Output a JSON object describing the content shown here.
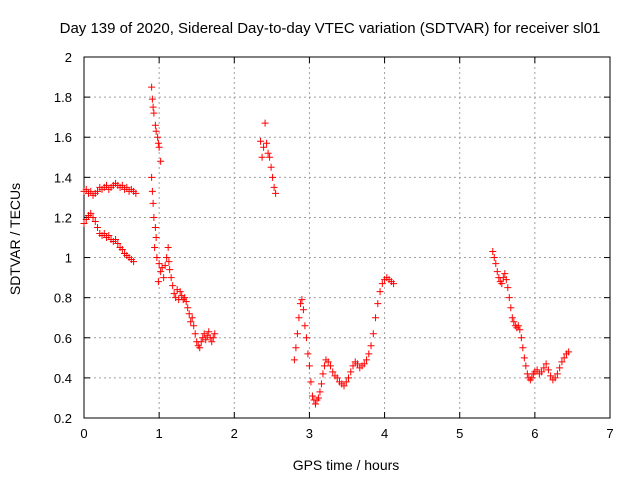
{
  "chart_data": {
    "type": "scatter",
    "title": "Day 139 of 2020, Sidereal Day-to-day VTEC variation (SDTVAR) for receiver sl01",
    "xlabel": "GPS time / hours",
    "ylabel": "SDTVAR / TECUs",
    "xlim": [
      0,
      7
    ],
    "ylim": [
      0.2,
      2
    ],
    "xticks": [
      "0",
      "1",
      "2",
      "3",
      "4",
      "5",
      "6",
      "7"
    ],
    "yticks": [
      "0.2",
      "0.4",
      "0.6",
      "0.8",
      "1",
      "1.2",
      "1.4",
      "1.6",
      "1.8",
      "2"
    ],
    "grid": true,
    "marker": "+",
    "color": "#ff0000",
    "series": [
      {
        "name": "SDTVAR",
        "points": [
          [
            0.0,
            1.33
          ],
          [
            0.03,
            1.34
          ],
          [
            0.06,
            1.32
          ],
          [
            0.09,
            1.33
          ],
          [
            0.12,
            1.31
          ],
          [
            0.15,
            1.32
          ],
          [
            0.18,
            1.33
          ],
          [
            0.21,
            1.35
          ],
          [
            0.24,
            1.34
          ],
          [
            0.27,
            1.35
          ],
          [
            0.3,
            1.36
          ],
          [
            0.33,
            1.34
          ],
          [
            0.36,
            1.35
          ],
          [
            0.39,
            1.36
          ],
          [
            0.42,
            1.37
          ],
          [
            0.45,
            1.36
          ],
          [
            0.48,
            1.35
          ],
          [
            0.51,
            1.36
          ],
          [
            0.54,
            1.34
          ],
          [
            0.57,
            1.35
          ],
          [
            0.6,
            1.33
          ],
          [
            0.63,
            1.34
          ],
          [
            0.66,
            1.33
          ],
          [
            0.69,
            1.32
          ],
          [
            0.0,
            1.17
          ],
          [
            0.03,
            1.19
          ],
          [
            0.06,
            1.21
          ],
          [
            0.09,
            1.22
          ],
          [
            0.12,
            1.2
          ],
          [
            0.15,
            1.18
          ],
          [
            0.18,
            1.15
          ],
          [
            0.21,
            1.12
          ],
          [
            0.24,
            1.11
          ],
          [
            0.27,
            1.12
          ],
          [
            0.3,
            1.1
          ],
          [
            0.33,
            1.11
          ],
          [
            0.36,
            1.09
          ],
          [
            0.39,
            1.08
          ],
          [
            0.42,
            1.09
          ],
          [
            0.45,
            1.07
          ],
          [
            0.48,
            1.05
          ],
          [
            0.51,
            1.04
          ],
          [
            0.54,
            1.02
          ],
          [
            0.57,
            1.01
          ],
          [
            0.6,
            1.0
          ],
          [
            0.63,
            0.99
          ],
          [
            0.66,
            0.98
          ],
          [
            0.9,
            1.85
          ],
          [
            0.91,
            1.79
          ],
          [
            0.92,
            1.75
          ],
          [
            0.93,
            1.72
          ],
          [
            0.95,
            1.66
          ],
          [
            0.96,
            1.63
          ],
          [
            0.98,
            1.6
          ],
          [
            0.99,
            1.57
          ],
          [
            1.0,
            1.55
          ],
          [
            1.02,
            1.48
          ],
          [
            0.9,
            1.4
          ],
          [
            0.91,
            1.33
          ],
          [
            0.92,
            1.27
          ],
          [
            0.93,
            1.2
          ],
          [
            0.95,
            1.15
          ],
          [
            0.96,
            1.1
          ],
          [
            0.94,
            1.05
          ],
          [
            0.97,
            1.0
          ],
          [
            1.0,
            0.97
          ],
          [
            1.02,
            0.93
          ],
          [
            0.99,
            0.88
          ],
          [
            1.04,
            0.95
          ],
          [
            1.06,
            0.9
          ],
          [
            1.08,
            0.96
          ],
          [
            1.1,
            1.0
          ],
          [
            1.12,
            1.05
          ],
          [
            1.13,
            0.98
          ],
          [
            1.14,
            0.94
          ],
          [
            1.16,
            0.9
          ],
          [
            1.18,
            0.86
          ],
          [
            1.2,
            0.82
          ],
          [
            1.22,
            0.8
          ],
          [
            1.24,
            0.84
          ],
          [
            1.26,
            0.79
          ],
          [
            1.28,
            0.83
          ],
          [
            1.3,
            0.81
          ],
          [
            1.32,
            0.79
          ],
          [
            1.34,
            0.8
          ],
          [
            1.36,
            0.78
          ],
          [
            1.38,
            0.75
          ],
          [
            1.4,
            0.72
          ],
          [
            1.42,
            0.68
          ],
          [
            1.44,
            0.7
          ],
          [
            1.46,
            0.66
          ],
          [
            1.48,
            0.62
          ],
          [
            1.5,
            0.58
          ],
          [
            1.52,
            0.56
          ],
          [
            1.54,
            0.55
          ],
          [
            1.56,
            0.58
          ],
          [
            1.58,
            0.6
          ],
          [
            1.6,
            0.62
          ],
          [
            1.62,
            0.59
          ],
          [
            1.64,
            0.61
          ],
          [
            1.66,
            0.63
          ],
          [
            1.68,
            0.6
          ],
          [
            1.7,
            0.58
          ],
          [
            1.72,
            0.6
          ],
          [
            1.74,
            0.62
          ],
          [
            2.35,
            1.58
          ],
          [
            2.37,
            1.5
          ],
          [
            2.39,
            1.55
          ],
          [
            2.41,
            1.67
          ],
          [
            2.43,
            1.57
          ],
          [
            2.45,
            1.52
          ],
          [
            2.47,
            1.5
          ],
          [
            2.49,
            1.45
          ],
          [
            2.51,
            1.4
          ],
          [
            2.53,
            1.35
          ],
          [
            2.55,
            1.32
          ],
          [
            2.8,
            0.49
          ],
          [
            2.82,
            0.55
          ],
          [
            2.84,
            0.62
          ],
          [
            2.86,
            0.7
          ],
          [
            2.88,
            0.77
          ],
          [
            2.9,
            0.79
          ],
          [
            2.92,
            0.74
          ],
          [
            2.94,
            0.66
          ],
          [
            2.96,
            0.6
          ],
          [
            2.98,
            0.52
          ],
          [
            3.0,
            0.46
          ],
          [
            3.02,
            0.38
          ],
          [
            3.04,
            0.31
          ],
          [
            3.06,
            0.29
          ],
          [
            3.08,
            0.27
          ],
          [
            3.1,
            0.29
          ],
          [
            3.12,
            0.3
          ],
          [
            3.14,
            0.33
          ],
          [
            3.16,
            0.37
          ],
          [
            3.18,
            0.42
          ],
          [
            3.2,
            0.46
          ],
          [
            3.22,
            0.49
          ],
          [
            3.25,
            0.48
          ],
          [
            3.28,
            0.46
          ],
          [
            3.31,
            0.43
          ],
          [
            3.34,
            0.41
          ],
          [
            3.37,
            0.4
          ],
          [
            3.4,
            0.38
          ],
          [
            3.43,
            0.37
          ],
          [
            3.46,
            0.36
          ],
          [
            3.49,
            0.38
          ],
          [
            3.52,
            0.4
          ],
          [
            3.55,
            0.43
          ],
          [
            3.58,
            0.46
          ],
          [
            3.61,
            0.48
          ],
          [
            3.64,
            0.47
          ],
          [
            3.67,
            0.45
          ],
          [
            3.7,
            0.46
          ],
          [
            3.73,
            0.47
          ],
          [
            3.76,
            0.49
          ],
          [
            3.79,
            0.52
          ],
          [
            3.82,
            0.56
          ],
          [
            3.85,
            0.62
          ],
          [
            3.88,
            0.7
          ],
          [
            3.91,
            0.77
          ],
          [
            3.94,
            0.83
          ],
          [
            3.97,
            0.87
          ],
          [
            4.0,
            0.89
          ],
          [
            4.03,
            0.9
          ],
          [
            4.06,
            0.89
          ],
          [
            4.09,
            0.88
          ],
          [
            4.12,
            0.87
          ],
          [
            5.44,
            1.03
          ],
          [
            5.46,
            1.0
          ],
          [
            5.48,
            0.97
          ],
          [
            5.5,
            0.93
          ],
          [
            5.52,
            0.9
          ],
          [
            5.54,
            0.88
          ],
          [
            5.56,
            0.87
          ],
          [
            5.58,
            0.9
          ],
          [
            5.6,
            0.92
          ],
          [
            5.62,
            0.89
          ],
          [
            5.64,
            0.85
          ],
          [
            5.66,
            0.8
          ],
          [
            5.68,
            0.75
          ],
          [
            5.7,
            0.7
          ],
          [
            5.72,
            0.68
          ],
          [
            5.74,
            0.66
          ],
          [
            5.76,
            0.65
          ],
          [
            5.78,
            0.66
          ],
          [
            5.8,
            0.64
          ],
          [
            5.82,
            0.6
          ],
          [
            5.84,
            0.55
          ],
          [
            5.86,
            0.5
          ],
          [
            5.88,
            0.46
          ],
          [
            5.9,
            0.42
          ],
          [
            5.92,
            0.4
          ],
          [
            5.94,
            0.39
          ],
          [
            5.96,
            0.4
          ],
          [
            5.98,
            0.42
          ],
          [
            6.0,
            0.43
          ],
          [
            6.03,
            0.44
          ],
          [
            6.06,
            0.42
          ],
          [
            6.09,
            0.43
          ],
          [
            6.12,
            0.45
          ],
          [
            6.15,
            0.47
          ],
          [
            6.18,
            0.44
          ],
          [
            6.21,
            0.41
          ],
          [
            6.24,
            0.39
          ],
          [
            6.27,
            0.4
          ],
          [
            6.3,
            0.42
          ],
          [
            6.33,
            0.45
          ],
          [
            6.36,
            0.48
          ],
          [
            6.39,
            0.5
          ],
          [
            6.42,
            0.52
          ],
          [
            6.45,
            0.53
          ]
        ]
      }
    ]
  }
}
